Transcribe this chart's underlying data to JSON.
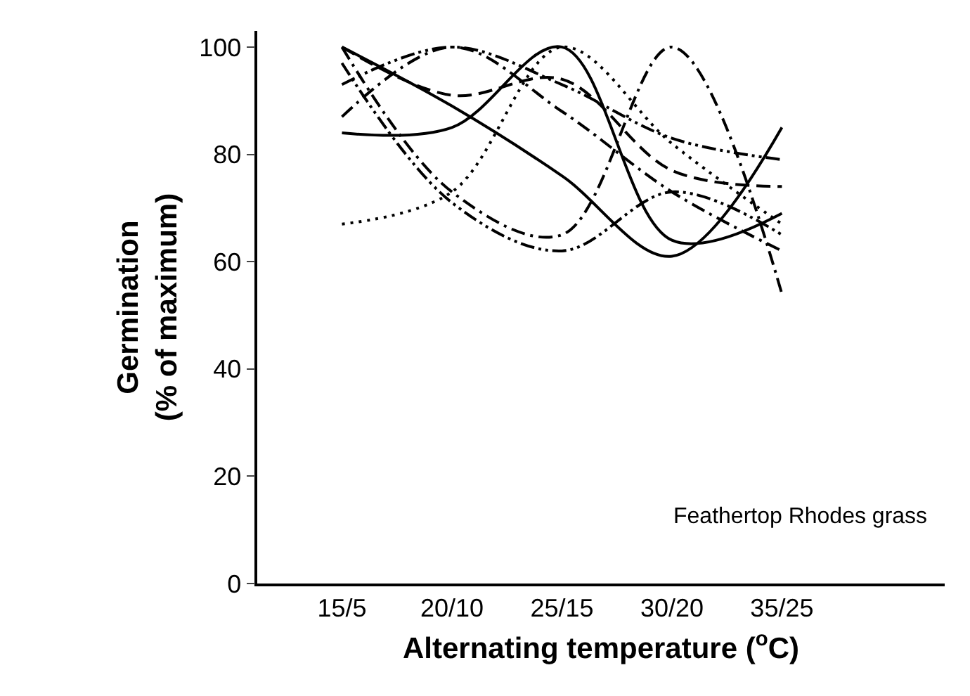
{
  "chart_data": {
    "type": "line",
    "xlabel": "Alternating temperature ($^{o}$C)",
    "ylabel": "Germination\n(% of maximum)",
    "categories": [
      "15/5",
      "20/10",
      "25/15",
      "30/20",
      "35/25"
    ],
    "ylim": [
      0,
      103
    ],
    "yticks": [
      0,
      20,
      40,
      60,
      80,
      100
    ],
    "annotations": [
      "Feathertop Rhodes grass"
    ],
    "series": [
      {
        "color": "#000000",
        "line_style": "solid",
        "values": [
          100,
          89,
          76,
          61,
          85
        ]
      },
      {
        "color": "#000000",
        "line_style": "solid",
        "values": [
          84,
          85,
          100,
          64,
          69
        ]
      },
      {
        "color": "#000000",
        "line_style": "dotted",
        "values": [
          67,
          73,
          100,
          82,
          67
        ]
      },
      {
        "color": "#000000",
        "line_style": "dashdotdot",
        "values": [
          93,
          100,
          93,
          83,
          79
        ]
      },
      {
        "color": "#000000",
        "line_style": "dashed",
        "values": [
          100,
          91,
          94,
          77,
          74
        ]
      },
      {
        "color": "#000000",
        "line_style": "dashdot",
        "values": [
          87,
          100,
          88,
          73,
          62
        ]
      },
      {
        "color": "#000000",
        "line_style": "dashdot",
        "values": [
          100,
          73,
          65,
          100,
          54
        ]
      },
      {
        "color": "#000000",
        "line_style": "dashdotdot",
        "values": [
          97,
          71,
          62,
          73,
          65
        ]
      }
    ]
  }
}
